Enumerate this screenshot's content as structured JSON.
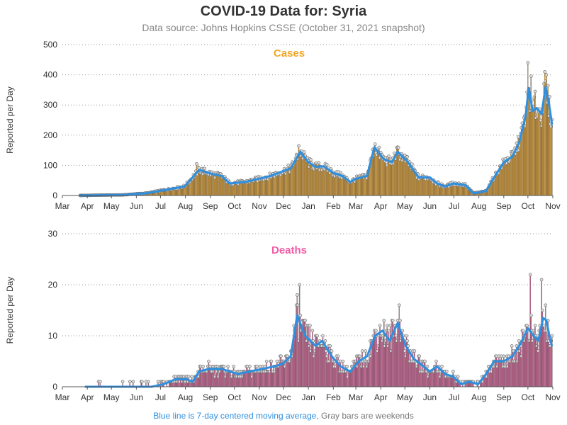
{
  "title": "COVID-19 Data for: Syria",
  "subtitle": "Data source: Johns Hopkins CSSE (October 31, 2021 snapshot)",
  "footer": {
    "blue_text": "Blue line is 7-day centered moving average,",
    "gray_text": "Gray bars are weekends"
  },
  "colors": {
    "cases_bar": "#f2a623",
    "deaths_bar": "#e8629f",
    "moving_average": "#2e8fdf",
    "cases_title": "#f2a623",
    "deaths_title": "#f25ca6"
  },
  "chart_data": [
    {
      "type": "bar",
      "title": "Cases",
      "ylabel": "Reported per Day",
      "xlabel": "",
      "ylim": [
        0,
        500
      ],
      "yticks": [
        0,
        100,
        200,
        300,
        400,
        500
      ],
      "xticks": [
        "Mar",
        "Apr",
        "May",
        "Jun",
        "Jul",
        "Aug",
        "Sep",
        "Oct",
        "Nov",
        "Dec",
        "Jan",
        "Feb",
        "Mar",
        "Apr",
        "May",
        "Jun",
        "Jul",
        "Aug",
        "Sep",
        "Oct",
        "Nov"
      ],
      "grid": "horizontal dotted",
      "moving_average_7day": [
        [
          "2020-03-22",
          0
        ],
        [
          "2020-04-15",
          1
        ],
        [
          "2020-05-15",
          2
        ],
        [
          "2020-06-15",
          8
        ],
        [
          "2020-07-10",
          20
        ],
        [
          "2020-07-31",
          30
        ],
        [
          "2020-08-10",
          60
        ],
        [
          "2020-08-18",
          85
        ],
        [
          "2020-09-05",
          70
        ],
        [
          "2020-09-15",
          65
        ],
        [
          "2020-09-25",
          40
        ],
        [
          "2020-10-15",
          45
        ],
        [
          "2020-10-31",
          55
        ],
        [
          "2020-11-15",
          65
        ],
        [
          "2020-11-30",
          80
        ],
        [
          "2020-12-10",
          90
        ],
        [
          "2020-12-22",
          145
        ],
        [
          "2021-01-01",
          110
        ],
        [
          "2021-01-10",
          95
        ],
        [
          "2021-01-20",
          97
        ],
        [
          "2021-02-01",
          75
        ],
        [
          "2021-02-12",
          65
        ],
        [
          "2021-02-22",
          45
        ],
        [
          "2021-03-01",
          55
        ],
        [
          "2021-03-15",
          65
        ],
        [
          "2021-03-24",
          160
        ],
        [
          "2021-04-05",
          120
        ],
        [
          "2021-04-15",
          110
        ],
        [
          "2021-04-22",
          145
        ],
        [
          "2021-05-05",
          110
        ],
        [
          "2021-05-18",
          60
        ],
        [
          "2021-06-01",
          60
        ],
        [
          "2021-06-10",
          40
        ],
        [
          "2021-06-20",
          30
        ],
        [
          "2021-06-30",
          40
        ],
        [
          "2021-07-15",
          35
        ],
        [
          "2021-07-25",
          8
        ],
        [
          "2021-08-01",
          10
        ],
        [
          "2021-08-10",
          15
        ],
        [
          "2021-08-20",
          60
        ],
        [
          "2021-09-01",
          110
        ],
        [
          "2021-09-12",
          130
        ],
        [
          "2021-09-20",
          175
        ],
        [
          "2021-09-28",
          260
        ],
        [
          "2021-10-02",
          355
        ],
        [
          "2021-10-07",
          280
        ],
        [
          "2021-10-12",
          290
        ],
        [
          "2021-10-18",
          270
        ],
        [
          "2021-10-23",
          360
        ],
        [
          "2021-10-28",
          290
        ],
        [
          "2021-10-31",
          235
        ]
      ],
      "peaks": [
        [
          "2020-08-15",
          105
        ],
        [
          "2020-12-20",
          165
        ],
        [
          "2021-03-25",
          170
        ],
        [
          "2021-10-01",
          440
        ],
        [
          "2021-10-05",
          395
        ],
        [
          "2021-10-10",
          345
        ],
        [
          "2021-10-22",
          410
        ],
        [
          "2021-10-24",
          400
        ]
      ]
    },
    {
      "type": "bar",
      "title": "Deaths",
      "ylabel": "Reported per Day",
      "xlabel": "",
      "ylim": [
        0,
        30
      ],
      "yticks": [
        0,
        10,
        20,
        30
      ],
      "xticks": [
        "Mar",
        "Apr",
        "May",
        "Jun",
        "Jul",
        "Aug",
        "Sep",
        "Oct",
        "Nov",
        "Dec",
        "Jan",
        "Feb",
        "Mar",
        "Apr",
        "May",
        "Jun",
        "Jul",
        "Aug",
        "Sep",
        "Oct",
        "Nov"
      ],
      "grid": "horizontal dotted",
      "moving_average_7day": [
        [
          "2020-03-29",
          0
        ],
        [
          "2020-06-20",
          0
        ],
        [
          "2020-07-05",
          0.5
        ],
        [
          "2020-07-20",
          1.5
        ],
        [
          "2020-08-02",
          1.5
        ],
        [
          "2020-08-10",
          1
        ],
        [
          "2020-08-18",
          3
        ],
        [
          "2020-08-30",
          3.5
        ],
        [
          "2020-09-15",
          3.5
        ],
        [
          "2020-09-25",
          3
        ],
        [
          "2020-10-05",
          2.5
        ],
        [
          "2020-10-20",
          3
        ],
        [
          "2020-11-05",
          3.5
        ],
        [
          "2020-11-20",
          4
        ],
        [
          "2020-11-30",
          4.5
        ],
        [
          "2020-12-10",
          6
        ],
        [
          "2020-12-18",
          14
        ],
        [
          "2020-12-28",
          10
        ],
        [
          "2021-01-10",
          8
        ],
        [
          "2021-01-18",
          9
        ],
        [
          "2021-01-30",
          6
        ],
        [
          "2021-02-10",
          4
        ],
        [
          "2021-02-22",
          3
        ],
        [
          "2021-03-05",
          5
        ],
        [
          "2021-03-15",
          6
        ],
        [
          "2021-03-25",
          10
        ],
        [
          "2021-04-03",
          11
        ],
        [
          "2021-04-12",
          9
        ],
        [
          "2021-04-22",
          12.5
        ],
        [
          "2021-05-02",
          8
        ],
        [
          "2021-05-12",
          5.5
        ],
        [
          "2021-05-20",
          4.5
        ],
        [
          "2021-06-01",
          3
        ],
        [
          "2021-06-10",
          4
        ],
        [
          "2021-06-20",
          2.5
        ],
        [
          "2021-06-30",
          2
        ],
        [
          "2021-07-10",
          0.5
        ],
        [
          "2021-07-20",
          1
        ],
        [
          "2021-07-31",
          0.5
        ],
        [
          "2021-08-10",
          2.5
        ],
        [
          "2021-08-20",
          5
        ],
        [
          "2021-09-01",
          5
        ],
        [
          "2021-09-12",
          6
        ],
        [
          "2021-09-22",
          8.5
        ],
        [
          "2021-10-01",
          11.5
        ],
        [
          "2021-10-08",
          10
        ],
        [
          "2021-10-14",
          9
        ],
        [
          "2021-10-20",
          13.5
        ],
        [
          "2021-10-24",
          13
        ],
        [
          "2021-10-29",
          9
        ],
        [
          "2021-10-31",
          8
        ]
      ],
      "peaks": [
        [
          "2020-12-21",
          20
        ],
        [
          "2021-04-24",
          16
        ],
        [
          "2021-10-04",
          22
        ],
        [
          "2021-10-18",
          21
        ]
      ]
    }
  ]
}
